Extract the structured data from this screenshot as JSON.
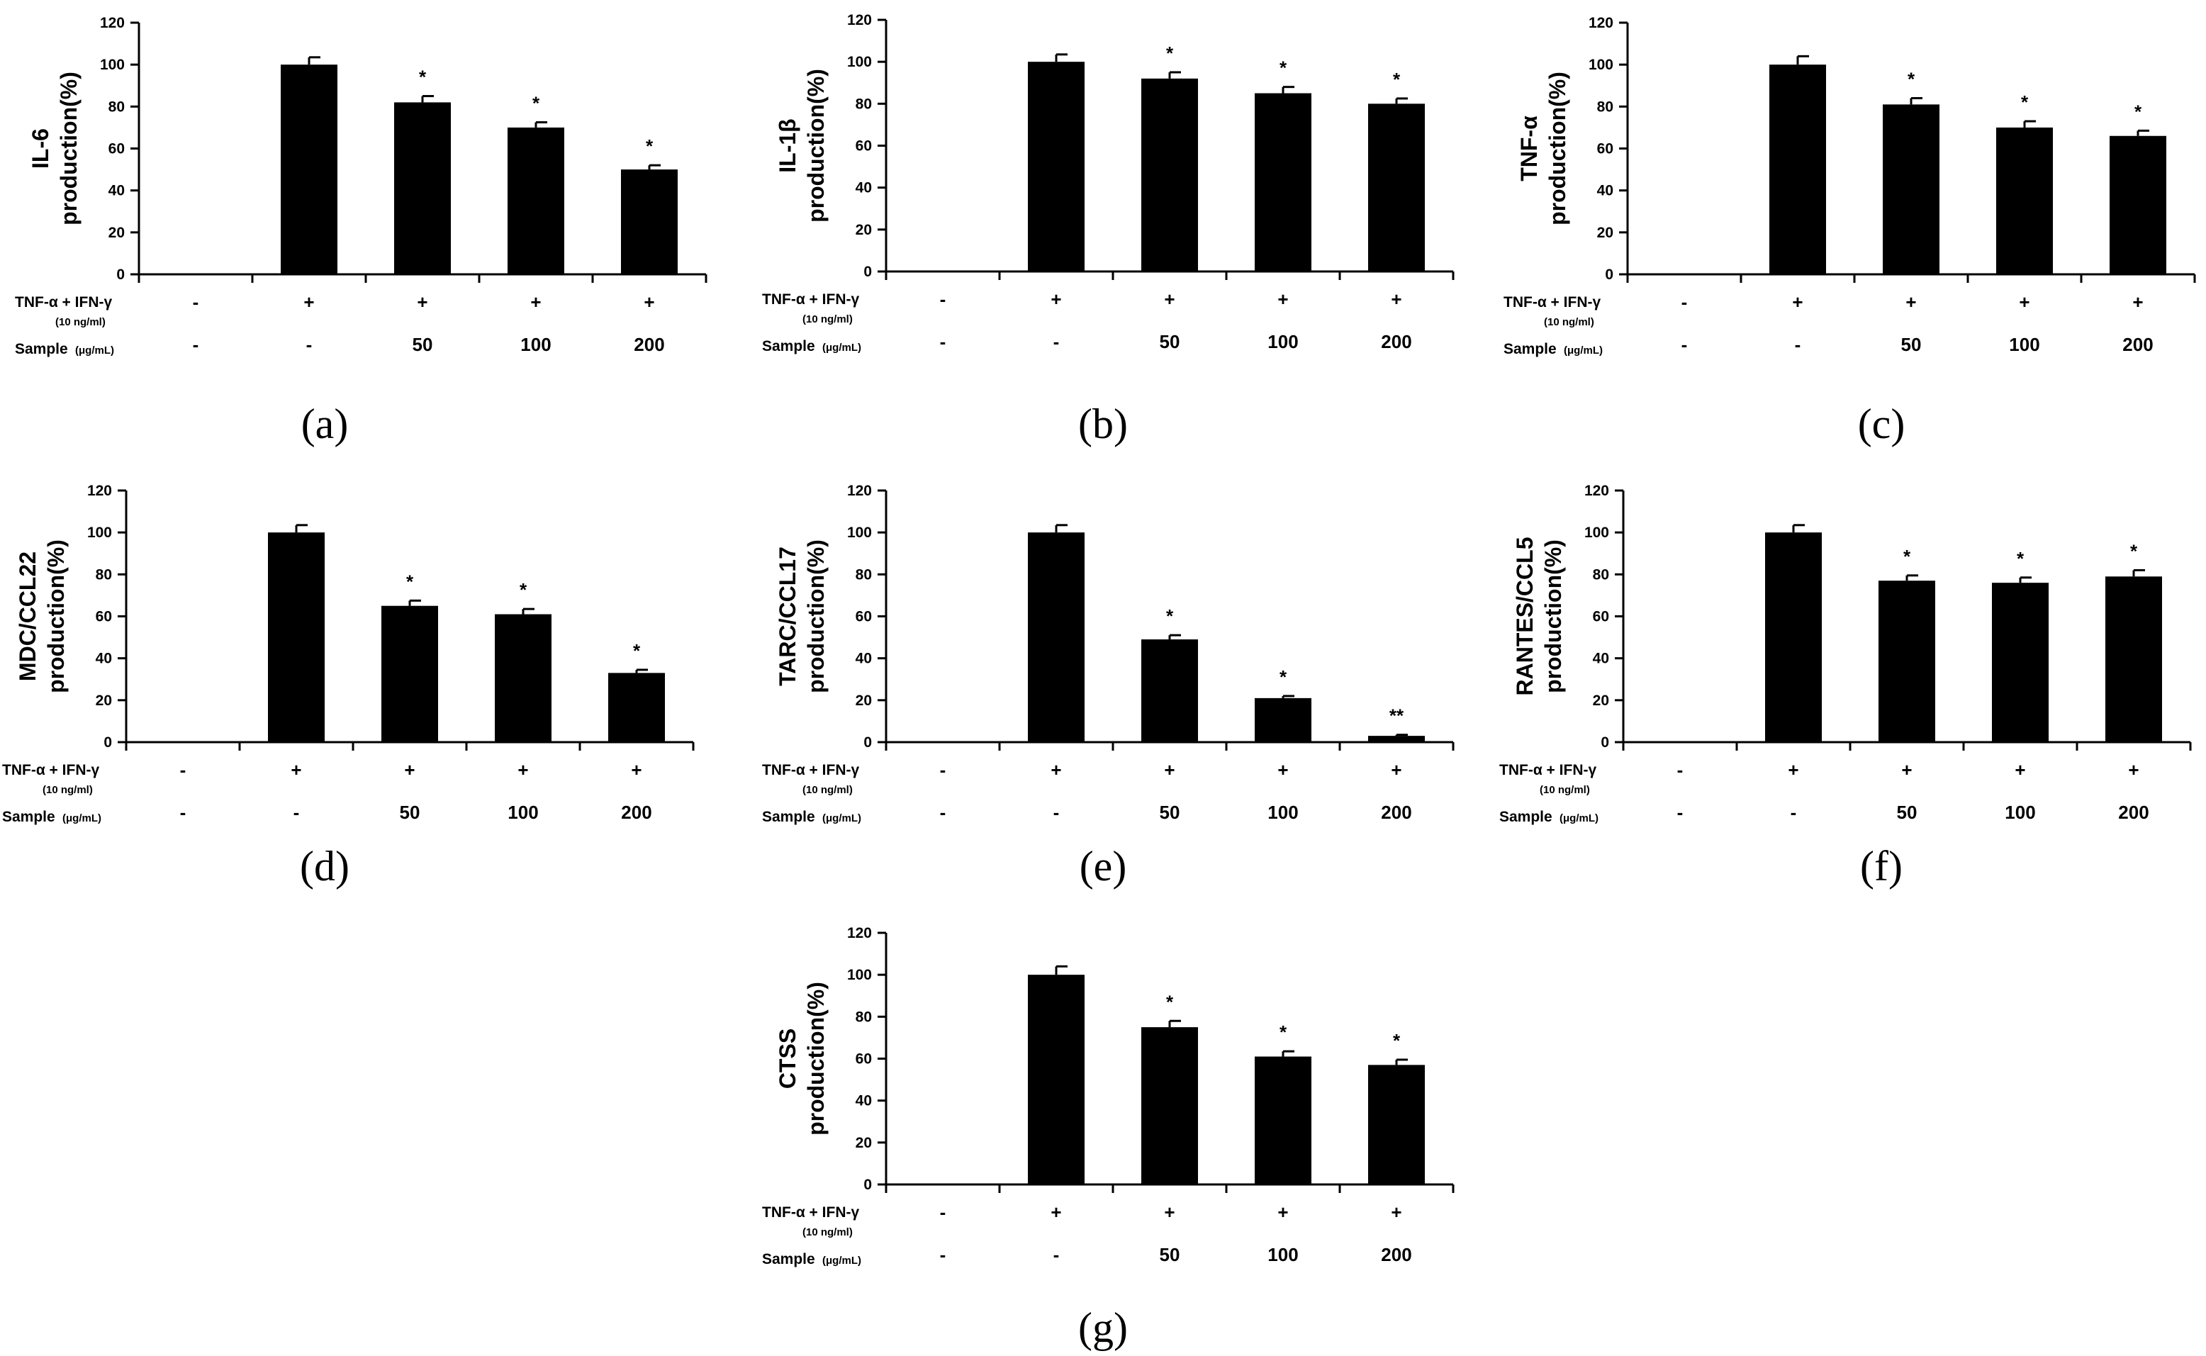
{
  "chart_data": [
    {
      "panel": "(a)",
      "type": "bar",
      "ylabel_line1": "IL-6",
      "ylabel_line2": "production(%)",
      "ylim": [
        0,
        120
      ],
      "yticks": [
        0,
        20,
        40,
        60,
        80,
        100,
        120
      ],
      "values": [
        0,
        100,
        82,
        70,
        50
      ],
      "errors": [
        0,
        3.5,
        3,
        2.5,
        2
      ],
      "significance": [
        "",
        "",
        "*",
        "*",
        "*"
      ],
      "row1_label": "TNF-α + IFN-γ",
      "row1_sublabel": "(10 ng/ml)",
      "row1_values": [
        "-",
        "+",
        "+",
        "+",
        "+"
      ],
      "row2_label": "Sample",
      "row2_unit": "(μg/mL)",
      "row2_values": [
        "-",
        "-",
        "50",
        "100",
        "200"
      ]
    },
    {
      "panel": "(b)",
      "type": "bar",
      "ylabel_line1": "IL-1β",
      "ylabel_line2": "production(%)",
      "ylim": [
        0,
        120
      ],
      "yticks": [
        0,
        20,
        40,
        60,
        80,
        100,
        120
      ],
      "values": [
        0,
        100,
        92,
        85,
        80
      ],
      "errors": [
        0,
        3.5,
        3,
        3,
        2.5
      ],
      "significance": [
        "",
        "",
        "*",
        "*",
        "*"
      ],
      "row1_label": "TNF-α + IFN-γ",
      "row1_sublabel": "(10 ng/ml)",
      "row1_values": [
        "-",
        "+",
        "+",
        "+",
        "+"
      ],
      "row2_label": "Sample",
      "row2_unit": "(μg/mL)",
      "row2_values": [
        "-",
        "-",
        "50",
        "100",
        "200"
      ]
    },
    {
      "panel": "(c)",
      "type": "bar",
      "ylabel_line1": "TNF-α",
      "ylabel_line2": "production(%)",
      "ylim": [
        0,
        120
      ],
      "yticks": [
        0,
        20,
        40,
        60,
        80,
        100,
        120
      ],
      "values": [
        0,
        100,
        81,
        70,
        66
      ],
      "errors": [
        0,
        4,
        3,
        3,
        2.5
      ],
      "significance": [
        "",
        "",
        "*",
        "*",
        "*"
      ],
      "row1_label": "TNF-α + IFN-γ",
      "row1_sublabel": "(10 ng/ml)",
      "row1_values": [
        "-",
        "+",
        "+",
        "+",
        "+"
      ],
      "row2_label": "Sample",
      "row2_unit": "(μg/mL)",
      "row2_values": [
        "-",
        "-",
        "50",
        "100",
        "200"
      ]
    },
    {
      "panel": "(d)",
      "type": "bar",
      "ylabel_line1": "MDC/CCL22",
      "ylabel_line2": "production(%)",
      "ylim": [
        0,
        120
      ],
      "yticks": [
        0,
        20,
        40,
        60,
        80,
        100,
        120
      ],
      "values": [
        0,
        100,
        65,
        61,
        33
      ],
      "errors": [
        0,
        3.5,
        2.5,
        2.5,
        1.5
      ],
      "significance": [
        "",
        "",
        "*",
        "*",
        "*"
      ],
      "row1_label": "TNF-α + IFN-γ",
      "row1_sublabel": "(10 ng/ml)",
      "row1_values": [
        "-",
        "+",
        "+",
        "+",
        "+"
      ],
      "row2_label": "Sample",
      "row2_unit": "(μg/mL)",
      "row2_values": [
        "-",
        "-",
        "50",
        "100",
        "200"
      ]
    },
    {
      "panel": "(e)",
      "type": "bar",
      "ylabel_line1": "TARC/CCL17",
      "ylabel_line2": "production(%)",
      "ylim": [
        0,
        120
      ],
      "yticks": [
        0,
        20,
        40,
        60,
        80,
        100,
        120
      ],
      "values": [
        0,
        100,
        49,
        21,
        3
      ],
      "errors": [
        0,
        3.5,
        2,
        1,
        0.5
      ],
      "significance": [
        "",
        "",
        "*",
        "*",
        "**"
      ],
      "row1_label": "TNF-α + IFN-γ",
      "row1_sublabel": "(10 ng/ml)",
      "row1_values": [
        "-",
        "+",
        "+",
        "+",
        "+"
      ],
      "row2_label": "Sample",
      "row2_unit": "(μg/mL)",
      "row2_values": [
        "-",
        "-",
        "50",
        "100",
        "200"
      ]
    },
    {
      "panel": "(f)",
      "type": "bar",
      "ylabel_line1": "RANTES/CCL5",
      "ylabel_line2": "production(%)",
      "ylim": [
        0,
        120
      ],
      "yticks": [
        0,
        20,
        40,
        60,
        80,
        100,
        120
      ],
      "values": [
        0,
        100,
        77,
        76,
        79
      ],
      "errors": [
        0,
        3.5,
        2.5,
        2.5,
        3
      ],
      "significance": [
        "",
        "",
        "*",
        "*",
        "*"
      ],
      "row1_label": "TNF-α + IFN-γ",
      "row1_sublabel": "(10 ng/ml)",
      "row1_values": [
        "-",
        "+",
        "+",
        "+",
        "+"
      ],
      "row2_label": "Sample",
      "row2_unit": "(μg/mL)",
      "row2_values": [
        "-",
        "-",
        "50",
        "100",
        "200"
      ]
    },
    {
      "panel": "(g)",
      "type": "bar",
      "ylabel_line1": "CTSS",
      "ylabel_line2": "production(%)",
      "ylim": [
        0,
        120
      ],
      "yticks": [
        0,
        20,
        40,
        60,
        80,
        100,
        120
      ],
      "values": [
        0,
        100,
        75,
        61,
        57
      ],
      "errors": [
        0,
        4,
        3,
        2.5,
        2.5
      ],
      "significance": [
        "",
        "",
        "*",
        "*",
        "*"
      ],
      "row1_label": "TNF-α + IFN-γ",
      "row1_sublabel": "(10 ng/ml)",
      "row1_values": [
        "-",
        "+",
        "+",
        "+",
        "+"
      ],
      "row2_label": "Sample",
      "row2_unit": "(μg/mL)",
      "row2_values": [
        "-",
        "-",
        "50",
        "100",
        "200"
      ]
    }
  ]
}
